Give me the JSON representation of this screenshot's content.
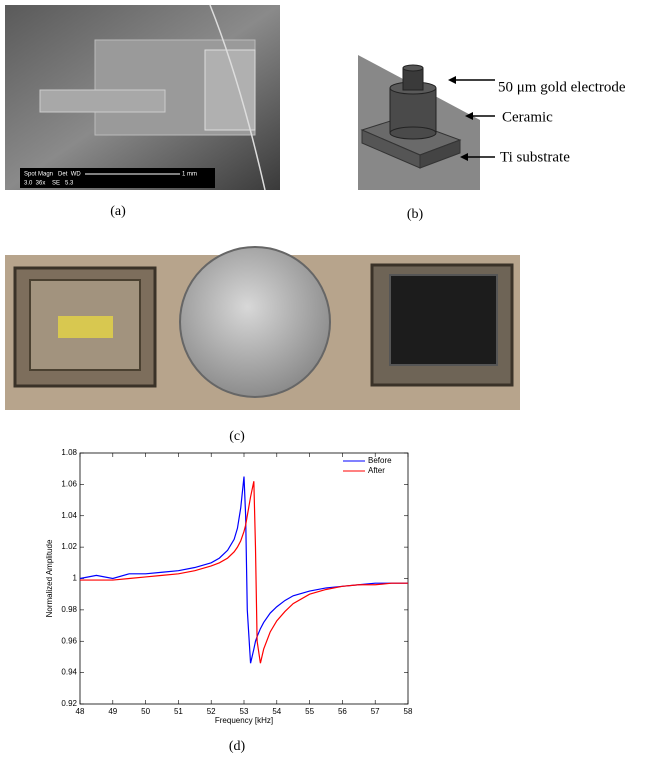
{
  "panels": {
    "a": {
      "label": "(a)",
      "sem_header": "Spot Magn   Det  WD",
      "sem_values": "3.0  36x    SE   5.3",
      "scale_bar": "1 mm"
    },
    "b": {
      "label": "(b)",
      "labels": [
        "50 μm gold electrode",
        "Ceramic",
        "Ti substrate"
      ]
    },
    "c": {
      "label": "(c)"
    },
    "d": {
      "label": "(d)"
    }
  },
  "chart_data": {
    "type": "line",
    "xlabel": "Frequency [kHz]",
    "ylabel": "Normalized Amplitude",
    "x": [
      48,
      48.5,
      49,
      49.5,
      50,
      50.5,
      51,
      51.5,
      52,
      52.25,
      52.5,
      52.7,
      52.8,
      52.9,
      53,
      53.05,
      53.1,
      53.2,
      53.3,
      53.35,
      53.4,
      53.5,
      53.6,
      53.8,
      54,
      54.25,
      54.5,
      55,
      55.5,
      56,
      56.5,
      57,
      57.5,
      58
    ],
    "series": [
      {
        "name": "Before",
        "color": "#0000ff",
        "values": [
          1.0,
          1.002,
          1.0,
          1.003,
          1.003,
          1.004,
          1.005,
          1.007,
          1.01,
          1.013,
          1.018,
          1.025,
          1.032,
          1.045,
          1.065,
          1.04,
          0.98,
          0.946,
          0.955,
          0.96,
          0.963,
          0.968,
          0.972,
          0.978,
          0.982,
          0.986,
          0.989,
          0.992,
          0.994,
          0.995,
          0.996,
          0.997,
          0.997,
          0.997
        ]
      },
      {
        "name": "After",
        "color": "#ff0000",
        "values": [
          0.999,
          0.999,
          0.999,
          1.0,
          1.001,
          1.002,
          1.003,
          1.005,
          1.008,
          1.01,
          1.013,
          1.017,
          1.02,
          1.024,
          1.03,
          1.034,
          1.04,
          1.052,
          1.062,
          1.02,
          0.96,
          0.946,
          0.955,
          0.966,
          0.973,
          0.979,
          0.984,
          0.99,
          0.993,
          0.995,
          0.996,
          0.996,
          0.997,
          0.997
        ]
      }
    ],
    "xlim": [
      48,
      58
    ],
    "xticks": [
      48,
      49,
      50,
      51,
      52,
      53,
      54,
      55,
      56,
      57,
      58
    ],
    "ylim": [
      0.92,
      1.08
    ],
    "yticks": [
      0.92,
      0.94,
      0.96,
      0.98,
      1,
      1.02,
      1.04,
      1.06,
      1.08
    ],
    "legend": "upper right",
    "grid": false
  }
}
